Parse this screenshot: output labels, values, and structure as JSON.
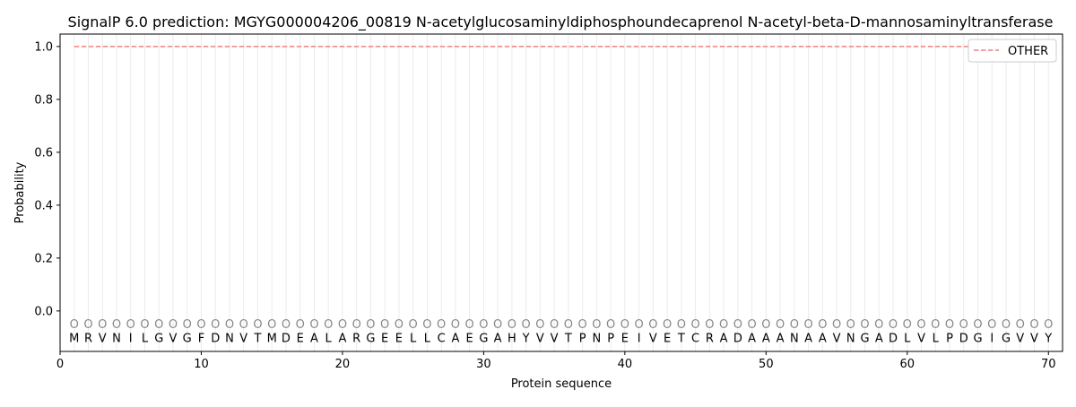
{
  "chart_data": {
    "type": "line",
    "title": "SignalP 6.0 prediction: MGYG000004206_00819 N-acetylglucosaminyldiphosphoundecaprenol N-acetyl-beta-D-mannosaminyltransferase",
    "xlabel": "Protein sequence",
    "ylabel": "Probability",
    "xlim": [
      0,
      71
    ],
    "ylim": [
      -0.153,
      1.047
    ],
    "xticks": [
      0,
      10,
      20,
      30,
      40,
      50,
      60,
      70
    ],
    "yticks": [
      0.0,
      0.2,
      0.4,
      0.6,
      0.8,
      1.0
    ],
    "ytick_labels": [
      "0.0",
      "0.2",
      "0.4",
      "0.6",
      "0.8",
      "1.0"
    ],
    "grid": "vertical lines at each residue",
    "legend_position": "top-right",
    "sequence": "MRVNILGVGFDNVTMDEALARGEELLCAEGAHYVVTPNPEIVETCRADAAANAAVNGADLVLPDGIGVVY",
    "predicted_labels": "OOOOOOOOOOOOOOOOOOOOOOOOOOOOOOOOOOOOOOOOOOOOOOOOOOOOOOOOOOOOOOOOOOOOOO",
    "series": [
      {
        "name": "OTHER",
        "color": "#f08080",
        "style": "dashed",
        "x_range": [
          1,
          70
        ],
        "value": 1.0
      }
    ]
  }
}
